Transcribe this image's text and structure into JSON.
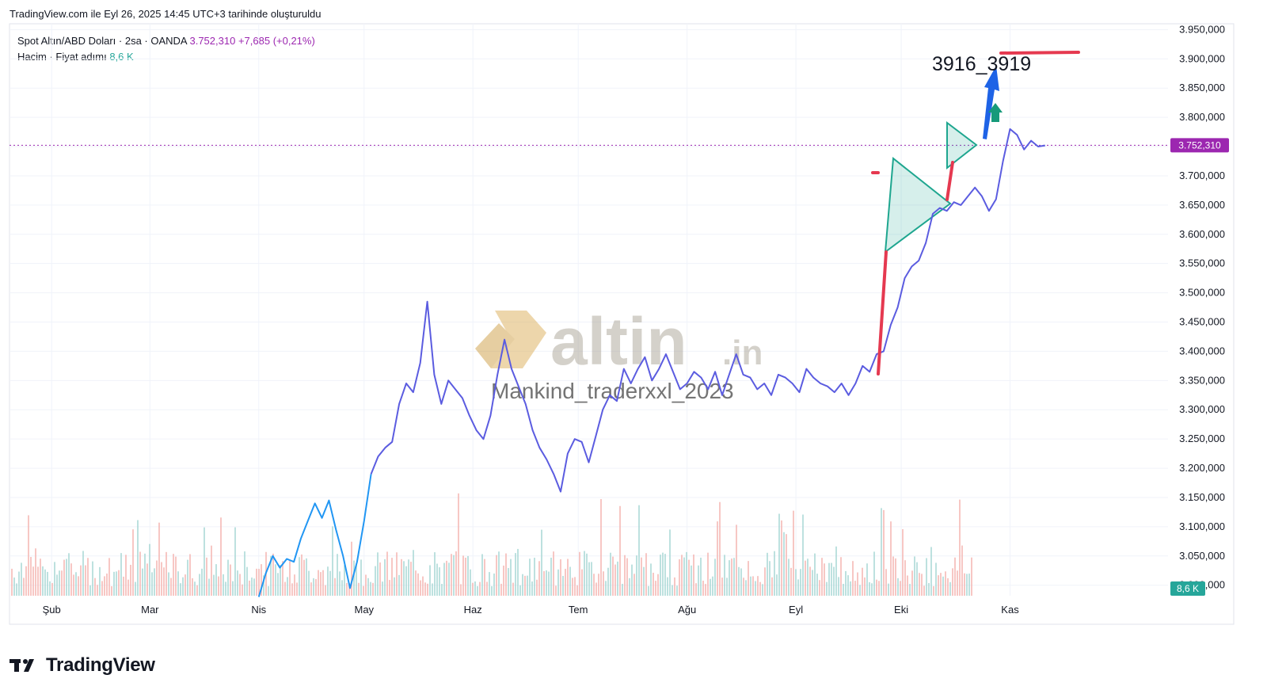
{
  "header": {
    "created_note": "TradingView.com ile Eyl 26, 2025 14:45 UTC+3 tarihinde oluşturuldu"
  },
  "legend": {
    "symbol": "Spot Altın/ABD Doları · 2sa · OANDA",
    "last_price": "3.752,310",
    "change": "+7,685 (+0,21%)",
    "volume_label": "Hacim · Fiyat adımı",
    "volume_value": "8,6 K"
  },
  "watermark": {
    "brand": "altin",
    "brand_suffix": ".in",
    "author": "Mankind_traderxxl_2023"
  },
  "annotation": {
    "target_text": "3916_3919"
  },
  "price_tag": "3.752,310",
  "volume_tag": "8,6 K",
  "footer": {
    "brand": "TradingView"
  },
  "colors": {
    "price_line": "#5b5ce0",
    "price_line_early": "#2196f3",
    "price_tag": "#9c27b0",
    "volume_up": "#a7d7d4",
    "volume_down": "#f4b4b0",
    "triangle": "#1ea68f",
    "red_line": "#e53950",
    "blue_arrow": "#1e63e6",
    "green_arrow": "#169a7a"
  },
  "chart_data": {
    "type": "line",
    "title": "Spot Altın/ABD Doları · 2sa · OANDA",
    "x_tick_labels": [
      "Şub",
      "Mar",
      "Nis",
      "May",
      "Haz",
      "Tem",
      "Ağu",
      "Eyl",
      "Eki",
      "Kas"
    ],
    "y_tick_labels": [
      "3.000,000",
      "3.050,000",
      "3.100,000",
      "3.150,000",
      "3.200,000",
      "3.250,000",
      "3.300,000",
      "3.350,000",
      "3.400,000",
      "3.450,000",
      "3.500,000",
      "3.550,000",
      "3.600,000",
      "3.650,000",
      "3.700,000",
      "3.750,000",
      "3.800,000",
      "3.850,000",
      "3.900,000",
      "3.950,000"
    ],
    "y_ticks": [
      3000,
      3050,
      3100,
      3150,
      3200,
      3250,
      3300,
      3350,
      3400,
      3450,
      3500,
      3550,
      3600,
      3650,
      3700,
      3750,
      3800,
      3850,
      3900,
      3950
    ],
    "ylim": [
      2982,
      3960
    ],
    "x_unit": "days since Jan 1, 2025",
    "xlim": [
      20,
      350
    ],
    "month_ticks": [
      32,
      60,
      91,
      121,
      152,
      182,
      213,
      244,
      274,
      305
    ],
    "current_price": 3752.31,
    "series": [
      {
        "name": "Spot Altın/ABD Doları",
        "points": [
          [
            91,
            2980
          ],
          [
            93,
            3020
          ],
          [
            95,
            3050
          ],
          [
            97,
            3030
          ],
          [
            99,
            3045
          ],
          [
            101,
            3040
          ],
          [
            103,
            3080
          ],
          [
            105,
            3110
          ],
          [
            107,
            3140
          ],
          [
            109,
            3115
          ],
          [
            111,
            3145
          ],
          [
            113,
            3095
          ],
          [
            115,
            3050
          ],
          [
            117,
            2995
          ],
          [
            119,
            3040
          ],
          [
            121,
            3110
          ],
          [
            123,
            3190
          ],
          [
            125,
            3220
          ],
          [
            127,
            3235
          ],
          [
            129,
            3245
          ],
          [
            131,
            3310
          ],
          [
            133,
            3345
          ],
          [
            135,
            3330
          ],
          [
            137,
            3380
          ],
          [
            139,
            3485
          ],
          [
            141,
            3360
          ],
          [
            143,
            3310
          ],
          [
            145,
            3350
          ],
          [
            147,
            3335
          ],
          [
            149,
            3320
          ],
          [
            151,
            3290
          ],
          [
            153,
            3265
          ],
          [
            155,
            3250
          ],
          [
            157,
            3290
          ],
          [
            159,
            3360
          ],
          [
            161,
            3420
          ],
          [
            163,
            3370
          ],
          [
            165,
            3340
          ],
          [
            167,
            3310
          ],
          [
            169,
            3265
          ],
          [
            171,
            3235
          ],
          [
            173,
            3215
          ],
          [
            175,
            3190
          ],
          [
            177,
            3160
          ],
          [
            179,
            3225
          ],
          [
            181,
            3250
          ],
          [
            183,
            3245
          ],
          [
            185,
            3210
          ],
          [
            187,
            3255
          ],
          [
            189,
            3300
          ],
          [
            191,
            3325
          ],
          [
            193,
            3315
          ],
          [
            195,
            3370
          ],
          [
            197,
            3345
          ],
          [
            199,
            3370
          ],
          [
            201,
            3390
          ],
          [
            203,
            3350
          ],
          [
            205,
            3370
          ],
          [
            207,
            3395
          ],
          [
            209,
            3365
          ],
          [
            211,
            3335
          ],
          [
            213,
            3345
          ],
          [
            215,
            3365
          ],
          [
            217,
            3355
          ],
          [
            219,
            3335
          ],
          [
            221,
            3365
          ],
          [
            223,
            3325
          ],
          [
            225,
            3360
          ],
          [
            227,
            3395
          ],
          [
            229,
            3360
          ],
          [
            231,
            3355
          ],
          [
            233,
            3335
          ],
          [
            235,
            3345
          ],
          [
            237,
            3325
          ],
          [
            239,
            3360
          ],
          [
            241,
            3355
          ],
          [
            243,
            3345
          ],
          [
            245,
            3330
          ],
          [
            247,
            3370
          ],
          [
            249,
            3355
          ],
          [
            251,
            3345
          ],
          [
            253,
            3340
          ],
          [
            255,
            3330
          ],
          [
            257,
            3345
          ],
          [
            259,
            3325
          ],
          [
            261,
            3345
          ],
          [
            263,
            3375
          ],
          [
            265,
            3365
          ],
          [
            267,
            3395
          ],
          [
            269,
            3400
          ],
          [
            271,
            3445
          ],
          [
            273,
            3475
          ],
          [
            275,
            3525
          ],
          [
            277,
            3545
          ],
          [
            279,
            3555
          ],
          [
            281,
            3585
          ],
          [
            283,
            3635
          ],
          [
            285,
            3645
          ],
          [
            287,
            3640
          ],
          [
            289,
            3655
          ],
          [
            291,
            3650
          ],
          [
            293,
            3665
          ],
          [
            295,
            3680
          ],
          [
            297,
            3665
          ],
          [
            299,
            3640
          ],
          [
            301,
            3660
          ],
          [
            303,
            3725
          ],
          [
            305,
            3780
          ],
          [
            307,
            3770
          ],
          [
            309,
            3745
          ],
          [
            311,
            3760
          ],
          [
            313,
            3750
          ],
          [
            315,
            3752
          ]
        ]
      }
    ]
  }
}
